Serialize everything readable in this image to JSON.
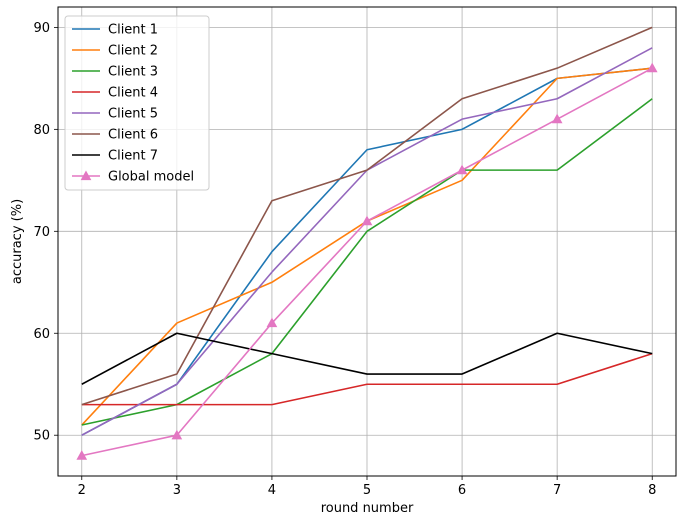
{
  "chart_data": {
    "type": "line",
    "xlabel": "round number",
    "ylabel": "accuracy (%)",
    "x": [
      2,
      3,
      4,
      5,
      6,
      7,
      8
    ],
    "xlim": [
      1.75,
      8.25
    ],
    "ylim": [
      46,
      92
    ],
    "xticks": [
      "2",
      "3",
      "4",
      "5",
      "6",
      "7",
      "8"
    ],
    "yticks": [
      "50",
      "60",
      "70",
      "80",
      "90"
    ],
    "ytick_values": [
      50,
      60,
      70,
      80,
      90
    ],
    "grid": true,
    "legend_position": "upper left",
    "series": [
      {
        "name": "Client 1",
        "color": "#1f77b4",
        "marker": "none",
        "values": [
          50,
          55,
          68,
          78,
          80,
          85,
          86
        ]
      },
      {
        "name": "Client 2",
        "color": "#ff7f0e",
        "marker": "none",
        "values": [
          51,
          61,
          65,
          71,
          75,
          85,
          86
        ]
      },
      {
        "name": "Client 3",
        "color": "#2ca02c",
        "marker": "none",
        "values": [
          51,
          53,
          58,
          70,
          76,
          76,
          83
        ]
      },
      {
        "name": "Client 4",
        "color": "#d62728",
        "marker": "none",
        "values": [
          53,
          53,
          53,
          55,
          55,
          55,
          58
        ]
      },
      {
        "name": "Client 5",
        "color": "#9467bd",
        "marker": "none",
        "values": [
          50,
          55,
          66,
          76,
          81,
          83,
          88
        ]
      },
      {
        "name": "Client 6",
        "color": "#8c564b",
        "marker": "none",
        "values": [
          53,
          56,
          73,
          76,
          83,
          86,
          90
        ]
      },
      {
        "name": "Client 7",
        "color": "#000000",
        "marker": "none",
        "values": [
          55,
          60,
          58,
          56,
          56,
          60,
          58
        ]
      },
      {
        "name": "Global model",
        "color": "#e377c2",
        "marker": "triangle",
        "values": [
          48,
          50,
          61,
          71,
          76,
          81,
          86
        ]
      }
    ]
  }
}
